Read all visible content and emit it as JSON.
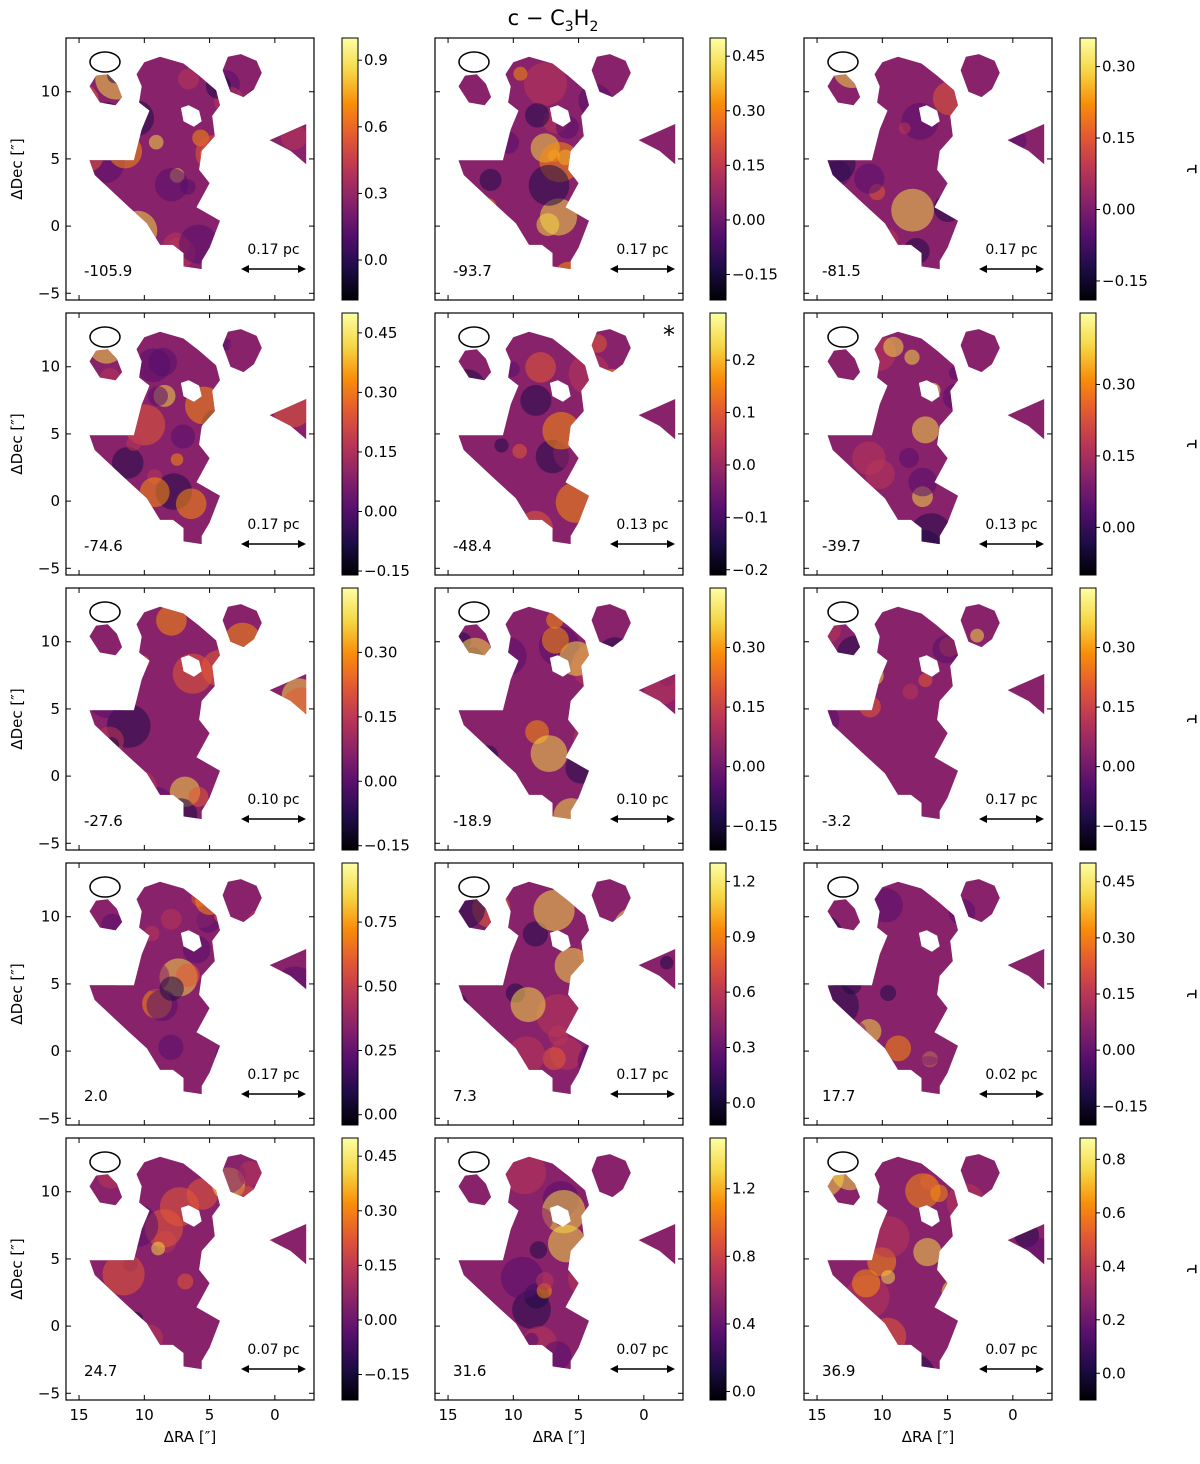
{
  "figure": {
    "title_main": "c − C",
    "title_sub1": "3",
    "title_mid": "H",
    "title_sub2": "2",
    "xlabel": "ΔRA [″]",
    "ylabel": "ΔDec [″]",
    "cbar_label": "τ",
    "colormap": [
      "#000004",
      "#1f0c48",
      "#550f6d",
      "#88226a",
      "#ba3655",
      "#e35933",
      "#f98e09",
      "#f6d746",
      "#fcffa4"
    ]
  },
  "chart_data": {
    "type": "heatmap",
    "title": "c − C3H2",
    "xlabel": "ΔRA [″]",
    "ylabel": "ΔDec [″]",
    "colorbar_label": "τ",
    "xlim": [
      16,
      -3
    ],
    "ylim": [
      -5.5,
      14
    ],
    "xticks": [
      "15",
      "10",
      "5",
      "0"
    ],
    "yticks": [
      "−5",
      "0",
      "5",
      "10"
    ],
    "panels": [
      {
        "velocity": "-105.9",
        "scale": "0.17 pc",
        "marker": "",
        "cbar_range": [
          -0.18,
          1.0
        ],
        "cbar_ticks": [
          "0.0",
          "0.3",
          "0.6",
          "0.9"
        ]
      },
      {
        "velocity": "-93.7",
        "scale": "0.17 pc",
        "marker": "",
        "cbar_range": [
          -0.22,
          0.5
        ],
        "cbar_ticks": [
          "−0.15",
          "0.00",
          "0.15",
          "0.30",
          "0.45"
        ]
      },
      {
        "velocity": "-81.5",
        "scale": "0.17 pc",
        "marker": "",
        "cbar_range": [
          -0.19,
          0.36
        ],
        "cbar_ticks": [
          "−0.15",
          "0.00",
          "0.15",
          "0.30"
        ]
      },
      {
        "velocity": "-74.6",
        "scale": "0.17 pc",
        "marker": "",
        "cbar_range": [
          -0.16,
          0.5
        ],
        "cbar_ticks": [
          "−0.15",
          "0.00",
          "0.15",
          "0.30",
          "0.45"
        ]
      },
      {
        "velocity": "-48.4",
        "scale": "0.13 pc",
        "marker": "*",
        "cbar_range": [
          -0.21,
          0.29
        ],
        "cbar_ticks": [
          "−0.2",
          "−0.1",
          "0.0",
          "0.1",
          "0.2"
        ]
      },
      {
        "velocity": "-39.7",
        "scale": "0.13 pc",
        "marker": "",
        "cbar_range": [
          -0.1,
          0.45
        ],
        "cbar_ticks": [
          "0.00",
          "0.15",
          "0.30"
        ]
      },
      {
        "velocity": "-27.6",
        "scale": "0.10 pc",
        "marker": "",
        "cbar_range": [
          -0.16,
          0.45
        ],
        "cbar_ticks": [
          "−0.15",
          "0.00",
          "0.15",
          "0.30"
        ]
      },
      {
        "velocity": "-18.9",
        "scale": "0.10 pc",
        "marker": "",
        "cbar_range": [
          -0.21,
          0.45
        ],
        "cbar_ticks": [
          "−0.15",
          "0.00",
          "0.15",
          "0.30"
        ]
      },
      {
        "velocity": "-3.2",
        "scale": "0.17 pc",
        "marker": "",
        "cbar_range": [
          -0.21,
          0.45
        ],
        "cbar_ticks": [
          "−0.15",
          "0.00",
          "0.15",
          "0.30"
        ]
      },
      {
        "velocity": "2.0",
        "scale": "0.17 pc",
        "marker": "",
        "cbar_range": [
          -0.04,
          0.98
        ],
        "cbar_ticks": [
          "0.00",
          "0.25",
          "0.50",
          "0.75"
        ]
      },
      {
        "velocity": "7.3",
        "scale": "0.17 pc",
        "marker": "",
        "cbar_range": [
          -0.12,
          1.3
        ],
        "cbar_ticks": [
          "0.0",
          "0.3",
          "0.6",
          "0.9",
          "1.2"
        ]
      },
      {
        "velocity": "17.7",
        "scale": "0.02 pc",
        "marker": "",
        "cbar_range": [
          -0.2,
          0.5
        ],
        "cbar_ticks": [
          "−0.15",
          "0.00",
          "0.15",
          "0.30",
          "0.45"
        ]
      },
      {
        "velocity": "24.7",
        "scale": "0.07 pc",
        "marker": "",
        "cbar_range": [
          -0.22,
          0.5
        ],
        "cbar_ticks": [
          "−0.15",
          "0.00",
          "0.15",
          "0.30",
          "0.45"
        ]
      },
      {
        "velocity": "31.6",
        "scale": "0.07 pc",
        "marker": "",
        "cbar_range": [
          -0.05,
          1.5
        ],
        "cbar_ticks": [
          "0.0",
          "0.4",
          "0.8",
          "1.2"
        ]
      },
      {
        "velocity": "36.9",
        "scale": "0.07 pc",
        "marker": "",
        "cbar_range": [
          -0.1,
          0.88
        ],
        "cbar_ticks": [
          "0.0",
          "0.2",
          "0.4",
          "0.6",
          "0.8"
        ]
      }
    ]
  }
}
